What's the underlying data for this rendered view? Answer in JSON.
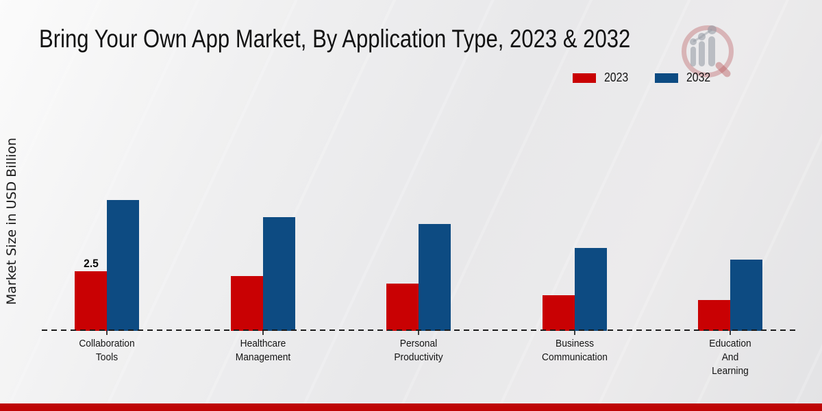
{
  "header": {
    "title": "Bring Your Own App Market, By Application Type, 2023 & 2032"
  },
  "y_axis": {
    "label": "Market Size in USD Billion"
  },
  "footer": {
    "accent_color": "#be0505"
  },
  "chart_data": {
    "type": "bar",
    "title": "Bring Your Own App Market, By Application Type, 2023 & 2032",
    "xlabel": "",
    "ylabel": "Market Size in USD Billion",
    "categories": [
      [
        "Collaboration",
        "Tools"
      ],
      [
        "Healthcare",
        "Management"
      ],
      [
        "Personal",
        "Productivity"
      ],
      [
        "Business",
        "Communication"
      ],
      [
        "Education",
        "And",
        "Learning"
      ]
    ],
    "series": [
      {
        "name": "2023",
        "color": "#c90103",
        "values": [
          2.5,
          2.3,
          2.0,
          1.5,
          1.3
        ],
        "data_labels": [
          "2.5",
          "",
          "",
          "",
          ""
        ]
      },
      {
        "name": "2032",
        "color": "#0d4b82",
        "values": [
          5.5,
          4.8,
          4.5,
          3.5,
          3.0
        ],
        "data_labels": [
          "",
          "",
          "",
          "",
          ""
        ]
      }
    ],
    "ylim": [
      0,
      6
    ],
    "grid": false,
    "legend_position": "top-right",
    "baseline_style": "dashed"
  }
}
